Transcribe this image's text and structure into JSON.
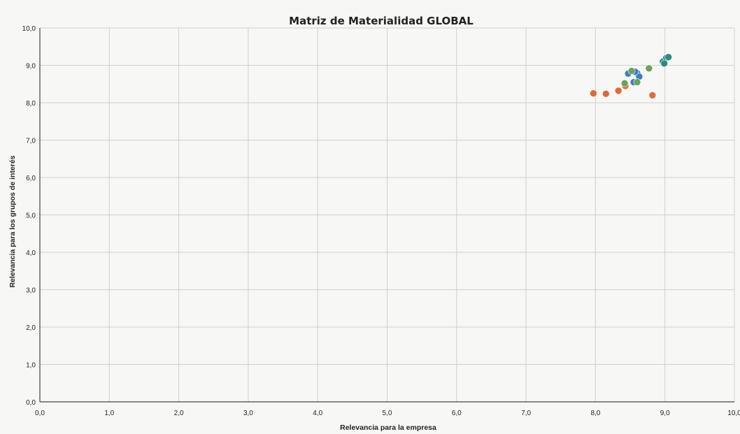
{
  "chart_data": {
    "type": "scatter",
    "title": "Matriz de Materialidad GLOBAL",
    "xlabel": "Relevancia para la empresa",
    "ylabel": "Relevancia para los grupos de interés",
    "xlim": [
      0,
      10
    ],
    "ylim": [
      0,
      10
    ],
    "x_ticks": [
      "0,0",
      "1,0",
      "2,0",
      "3,0",
      "4,0",
      "5,0",
      "6,0",
      "7,0",
      "8,0",
      "9,0",
      "10,0"
    ],
    "y_ticks": [
      "0,0",
      "1,0",
      "2,0",
      "3,0",
      "4,0",
      "5,0",
      "6,0",
      "7,0",
      "8,0",
      "9,0",
      "10,0"
    ],
    "grid": true,
    "legend": "none",
    "series": [
      {
        "color": "#e06a3a",
        "points": [
          [
            7.97,
            8.25
          ],
          [
            8.15,
            8.24
          ],
          [
            8.33,
            8.32
          ],
          [
            8.43,
            8.45
          ],
          [
            8.82,
            8.2
          ]
        ]
      },
      {
        "color": "#3d7dc2",
        "points": [
          [
            8.47,
            8.78
          ],
          [
            8.55,
            8.55
          ],
          [
            8.6,
            8.79
          ],
          [
            8.63,
            8.7
          ],
          [
            8.57,
            8.83
          ]
        ]
      },
      {
        "color": "#6aa35a",
        "points": [
          [
            8.52,
            8.85
          ],
          [
            8.6,
            8.55
          ],
          [
            8.77,
            8.92
          ],
          [
            8.42,
            8.52
          ]
        ]
      },
      {
        "color": "#2f8a7e",
        "points": [
          [
            8.97,
            9.1
          ],
          [
            9.02,
            9.2
          ],
          [
            9.05,
            9.22
          ],
          [
            8.99,
            9.05
          ]
        ]
      }
    ]
  }
}
